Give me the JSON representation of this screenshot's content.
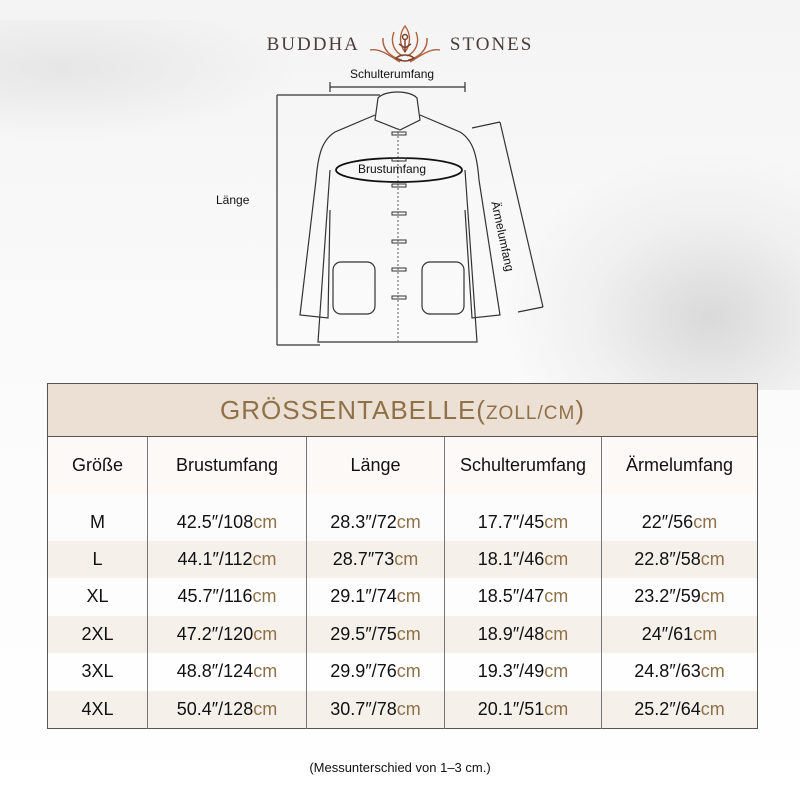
{
  "brand": {
    "left": "BUDDHA",
    "right": "STONES",
    "logo_icon": "lotus-meditation-icon",
    "color": "#b0603f"
  },
  "diagram": {
    "shoulder": "Schulterumfang",
    "length": "Länge",
    "chest": "Brustumfang",
    "sleeve": "Ärmelumfang"
  },
  "table": {
    "title": "GRÖSSENTABELLE(",
    "title_unit": "ZOLL/CM",
    "title_close": ")",
    "accent": "#8f7148",
    "headers": [
      "Größe",
      "Brustumfang",
      "Länge",
      "Schulterumfang",
      "Ärmelumfang"
    ],
    "rows": [
      {
        "size": "M",
        "cells": [
          [
            "42.5″/108",
            "cm"
          ],
          [
            "28.3″/72",
            "cm"
          ],
          [
            "17.7″/45",
            "cm"
          ],
          [
            "22″/56",
            "cm"
          ]
        ]
      },
      {
        "size": "L",
        "cells": [
          [
            "44.1″/112",
            "cm"
          ],
          [
            "28.7″73",
            "cm"
          ],
          [
            "18.1″/46",
            "cm"
          ],
          [
            "22.8″/58",
            "cm"
          ]
        ]
      },
      {
        "size": "XL",
        "cells": [
          [
            "45.7″/116",
            "cm"
          ],
          [
            "29.1″/74",
            "cm"
          ],
          [
            "18.5″/47",
            "cm"
          ],
          [
            "23.2″/59",
            "cm"
          ]
        ]
      },
      {
        "size": "2XL",
        "cells": [
          [
            "47.2″/120",
            "cm"
          ],
          [
            "29.5″/75",
            "cm"
          ],
          [
            "18.9″/48",
            "cm"
          ],
          [
            "24″/61",
            "cm"
          ]
        ]
      },
      {
        "size": "3XL",
        "cells": [
          [
            "48.8″/124",
            "cm"
          ],
          [
            "29.9″/76",
            "cm"
          ],
          [
            "19.3″/49",
            "cm"
          ],
          [
            "24.8″/63",
            "cm"
          ]
        ]
      },
      {
        "size": "4XL",
        "cells": [
          [
            "50.4″/128",
            "cm"
          ],
          [
            "30.7″/78",
            "cm"
          ],
          [
            "20.1″/51",
            "cm"
          ],
          [
            "25.2″/64",
            "cm"
          ]
        ]
      }
    ]
  },
  "note": "(Messunterschied von 1–3 cm.)"
}
